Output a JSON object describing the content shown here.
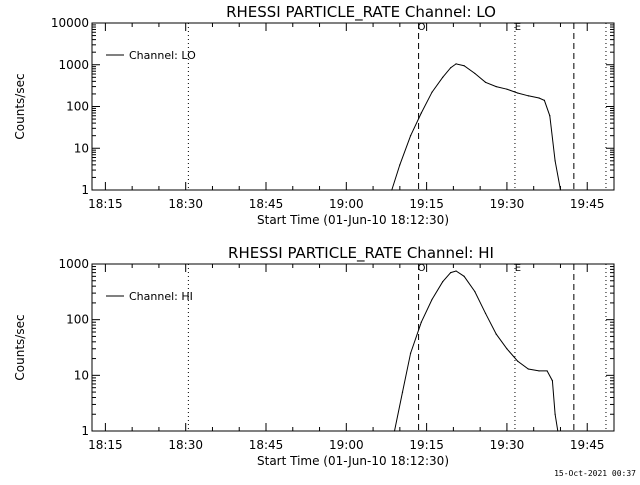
{
  "timestamp": "15-Oct-2021 00:37",
  "chart_data": [
    {
      "type": "line",
      "title": "RHESSI PARTICLE_RATE Channel: LO",
      "xlabel": "Start Time (01-Jun-10 18:12:30)",
      "ylabel": "Counts/sec",
      "y_scale": "log",
      "ylim": [
        1,
        10000
      ],
      "xlim": [
        "18:12:30",
        "19:50:00"
      ],
      "x_ticks": [
        "18:15",
        "18:30",
        "18:45",
        "19:00",
        "19:15",
        "19:30",
        "19:45"
      ],
      "y_ticks": [
        "1",
        "10",
        "100",
        "1000",
        "10000"
      ],
      "series": [
        {
          "name": "Channel: LO",
          "x": [
            "19:08:30",
            "19:10:00",
            "19:12:00",
            "19:14:00",
            "19:16:00",
            "19:18:00",
            "19:19:30",
            "19:20:30",
            "19:22:00",
            "19:24:00",
            "19:26:00",
            "19:28:00",
            "19:30:00",
            "19:32:00",
            "19:34:00",
            "19:36:00",
            "19:37:00",
            "19:38:00",
            "19:39:00",
            "19:40:00"
          ],
          "values": [
            1,
            4,
            20,
            70,
            220,
            500,
            850,
            1050,
            950,
            620,
            380,
            300,
            260,
            210,
            180,
            160,
            140,
            60,
            5,
            1
          ]
        }
      ],
      "markers": [
        {
          "time": "18:30:30",
          "style": "dotted"
        },
        {
          "time": "19:13:30",
          "style": "dashed",
          "label": "O"
        },
        {
          "time": "19:31:30",
          "style": "dotted",
          "label": "E"
        },
        {
          "time": "19:42:30",
          "style": "dashed"
        },
        {
          "time": "19:48:30",
          "style": "dotted"
        }
      ],
      "legend_position": "top-left",
      "grid": false
    },
    {
      "type": "line",
      "title": "RHESSI PARTICLE_RATE Channel: HI",
      "xlabel": "Start Time (01-Jun-10 18:12:30)",
      "ylabel": "Counts/sec",
      "y_scale": "log",
      "ylim": [
        1,
        1000
      ],
      "xlim": [
        "18:12:30",
        "19:50:00"
      ],
      "x_ticks": [
        "18:15",
        "18:30",
        "18:45",
        "19:00",
        "19:15",
        "19:30",
        "19:45"
      ],
      "y_ticks": [
        "1",
        "10",
        "100",
        "1000"
      ],
      "series": [
        {
          "name": "Channel: HI",
          "x": [
            "19:09:00",
            "19:10:30",
            "19:12:00",
            "19:14:00",
            "19:16:00",
            "19:18:00",
            "19:19:30",
            "19:20:30",
            "19:22:00",
            "19:24:00",
            "19:26:00",
            "19:28:00",
            "19:30:00",
            "19:32:00",
            "19:34:00",
            "19:36:00",
            "19:37:30",
            "19:38:30",
            "19:39:00",
            "19:39:30"
          ],
          "values": [
            1,
            5,
            25,
            90,
            230,
            480,
            700,
            750,
            600,
            320,
            130,
            55,
            30,
            18,
            13,
            12,
            12,
            8,
            2,
            1
          ]
        }
      ],
      "markers": [
        {
          "time": "18:30:30",
          "style": "dotted"
        },
        {
          "time": "19:13:30",
          "style": "dashed",
          "label": "O"
        },
        {
          "time": "19:31:30",
          "style": "dotted",
          "label": "E"
        },
        {
          "time": "19:42:30",
          "style": "dashed"
        },
        {
          "time": "19:48:30",
          "style": "dotted"
        }
      ],
      "legend_position": "top-left",
      "grid": false
    }
  ]
}
